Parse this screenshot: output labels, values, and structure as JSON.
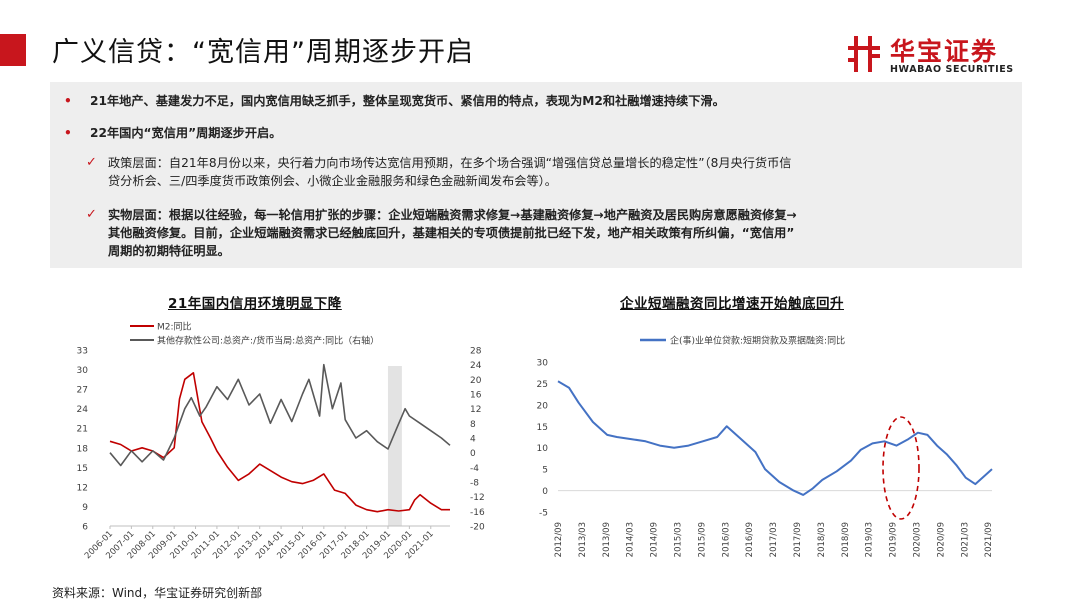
{
  "header": {
    "title": "广义信贷：“宽信用”周期逐步开启",
    "logo_cn": "华宝证券",
    "logo_en": "HWABAO SECURITIES",
    "accent_color": "#c8161d"
  },
  "summary": {
    "bullet1": "21年地产、基建发力不足，国内宽信用缺乏抓手，整体呈现宽货币、紧信用的特点，表现为M2和社融增速持续下滑。",
    "bullet2": "22年国内“宽信用”周期逐步开启。",
    "policy_line1": "政策层面：自21年8月份以来，央行着力向市场传达宽信用预期，在多个场合强调“增强信贷总量增长的稳定性”（8月央行货币信",
    "policy_line2": "贷分析会、三/四季度货币政策例会、小微企业金融服务和绿色金融新闻发布会等）。",
    "real_line1": "实物层面：根据以往经验，每一轮信用扩张的步骤：企业短端融资需求修复→基建融资修复→地产融资及居民购房意愿融资修复→",
    "real_line2": "其他融资修复。目前，企业短端融资需求已经触底回升，基建相关的专项债提前批已经下发，地产相关政策有所纠偏，“宽信用”",
    "real_line3": "周期的初期特征明显。"
  },
  "source": "资料来源：Wind，华宝证券研究创新部",
  "chart_data": [
    {
      "type": "line",
      "title": "21年国内信用环境明显下降",
      "x_labels": [
        "2006-01",
        "2007-01",
        "2008-01",
        "2009-01",
        "2010-01",
        "2011-01",
        "2012-01",
        "2013-01",
        "2014-01",
        "2015-01",
        "2016-01",
        "2017-01",
        "2018-01",
        "2019-01",
        "2020-01",
        "2021-01"
      ],
      "x_range": [
        2006.0,
        2021.9
      ],
      "ylim_left": [
        6,
        33
      ],
      "yticks_left": [
        6,
        9,
        12,
        15,
        18,
        21,
        24,
        27,
        30,
        33
      ],
      "ylim_right": [
        -20,
        28
      ],
      "yticks_right": [
        -20,
        -16,
        -12,
        -8,
        -4,
        0,
        4,
        8,
        12,
        16,
        20,
        24,
        28
      ],
      "highlight_band": [
        2019.0,
        2019.65
      ],
      "series": [
        {
          "name": "M2:同比",
          "axis": "left",
          "color": "#c00000",
          "x": [
            2006.0,
            2006.5,
            2007.0,
            2007.5,
            2008.0,
            2008.5,
            2009.0,
            2009.25,
            2009.5,
            2009.9,
            2010.3,
            2010.7,
            2011.0,
            2011.5,
            2012.0,
            2012.5,
            2013.0,
            2013.5,
            2014.0,
            2014.5,
            2015.0,
            2015.5,
            2016.0,
            2016.5,
            2017.0,
            2017.5,
            2018.0,
            2018.5,
            2019.0,
            2019.5,
            2020.0,
            2020.25,
            2020.5,
            2021.0,
            2021.5,
            2021.9
          ],
          "y": [
            19.0,
            18.5,
            17.5,
            18.0,
            17.5,
            16.5,
            18.0,
            25.5,
            28.5,
            29.5,
            22.0,
            19.5,
            17.5,
            15.0,
            13.0,
            14.0,
            15.5,
            14.5,
            13.5,
            12.8,
            12.5,
            13.0,
            14.0,
            11.5,
            11.0,
            9.2,
            8.5,
            8.2,
            8.5,
            8.3,
            8.5,
            10.0,
            10.8,
            9.5,
            8.5,
            8.5
          ]
        },
        {
          "name": "其他存款性公司:总资产:/货币当局:总资产:同比（右轴）",
          "axis": "right",
          "color": "#595959",
          "x": [
            2006.0,
            2006.5,
            2007.0,
            2007.5,
            2008.0,
            2008.5,
            2009.0,
            2009.5,
            2009.8,
            2010.2,
            2010.5,
            2011.0,
            2011.5,
            2012.0,
            2012.5,
            2013.0,
            2013.5,
            2014.0,
            2014.5,
            2015.0,
            2015.3,
            2015.8,
            2016.0,
            2016.4,
            2016.8,
            2017.0,
            2017.5,
            2018.0,
            2018.5,
            2019.0,
            2019.4,
            2019.8,
            2020.0,
            2020.5,
            2021.0,
            2021.5,
            2021.9
          ],
          "y": [
            0.0,
            -3.5,
            0.5,
            -2.5,
            0.5,
            -2.0,
            4.0,
            12.0,
            15.0,
            10.0,
            12.5,
            18.0,
            14.5,
            20.0,
            13.0,
            16.0,
            8.0,
            14.5,
            8.5,
            16.0,
            20.0,
            10.0,
            24.0,
            12.0,
            19.0,
            9.0,
            4.0,
            6.0,
            3.0,
            1.0,
            6.5,
            12.0,
            10.0,
            8.0,
            6.0,
            4.0,
            2.0
          ]
        }
      ]
    },
    {
      "type": "line",
      "title": "企业短端融资同比增速开始触底回升",
      "x_labels": [
        "2012/09",
        "2013/03",
        "2013/09",
        "2014/03",
        "2014/09",
        "2015/03",
        "2015/09",
        "2016/03",
        "2016/09",
        "2017/03",
        "2017/09",
        "2018/03",
        "2018/09",
        "2019/03",
        "2019/09",
        "2020/03",
        "2020/09",
        "2021/03",
        "2021/09"
      ],
      "x_range": [
        2012.67,
        2021.75
      ],
      "ylim": [
        -5,
        30
      ],
      "yticks": [
        -5,
        0,
        5,
        10,
        15,
        20,
        25,
        30
      ],
      "annotation": "dashed-ellipse",
      "series": [
        {
          "name": "企(事)业单位贷款:短期贷款及票据融资:同比",
          "color": "#4472c4",
          "x": [
            2012.67,
            2012.9,
            2013.1,
            2013.4,
            2013.7,
            2013.9,
            2014.2,
            2014.5,
            2014.8,
            2015.1,
            2015.4,
            2015.7,
            2016.0,
            2016.2,
            2016.5,
            2016.8,
            2017.0,
            2017.3,
            2017.6,
            2017.8,
            2018.0,
            2018.2,
            2018.5,
            2018.8,
            2019.0,
            2019.25,
            2019.5,
            2019.75,
            2020.0,
            2020.2,
            2020.4,
            2020.6,
            2020.8,
            2021.0,
            2021.2,
            2021.4,
            2021.6,
            2021.75
          ],
          "y": [
            25.5,
            24.0,
            20.5,
            16.0,
            13.0,
            12.5,
            12.0,
            11.5,
            10.5,
            10.0,
            10.5,
            11.5,
            12.5,
            15.0,
            12.0,
            9.0,
            5.0,
            2.0,
            0.0,
            -1.0,
            0.5,
            2.5,
            4.5,
            7.0,
            9.5,
            11.0,
            11.5,
            10.5,
            12.0,
            13.5,
            13.0,
            10.5,
            8.5,
            6.0,
            3.0,
            1.5,
            3.5,
            5.0
          ]
        }
      ]
    }
  ]
}
